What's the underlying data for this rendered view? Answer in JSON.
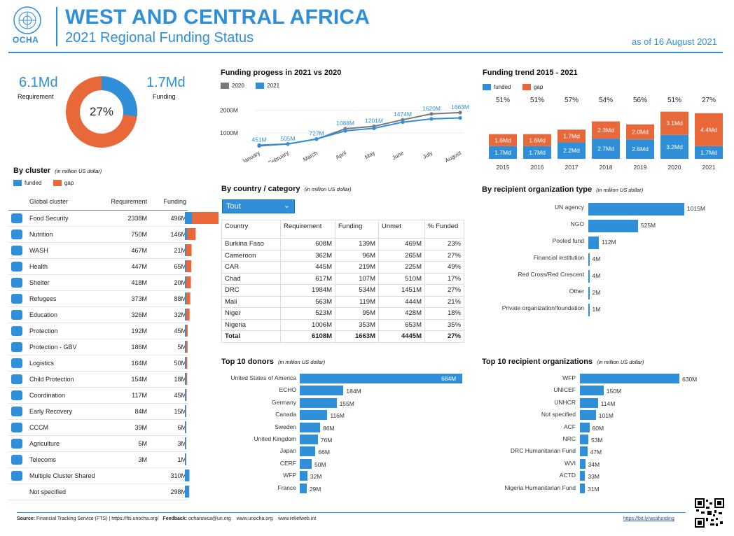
{
  "header": {
    "logo_label": "OCHA",
    "title": "WEST AND CENTRAL AFRICA",
    "subtitle": "2021 Regional Funding Status",
    "date": "as of 16 August 2021"
  },
  "colors": {
    "funded": "#2f8fd8",
    "gap": "#e8683a",
    "line2020": "#7a7a7a",
    "line2021": "#2f8fd8"
  },
  "summary": {
    "requirement_value": "6.1Md",
    "requirement_label": "Requirement",
    "funding_value": "1.7Md",
    "funding_label": "Funding",
    "pct_label": "27%",
    "pct": 27
  },
  "cluster": {
    "title": "By cluster",
    "note": "(in million US dollar)",
    "legend_funded": "funded",
    "legend_gap": "gap",
    "col_cluster": "Global cluster",
    "col_req": "Requirement",
    "col_fund": "Funding",
    "rows": [
      {
        "name": "Food Security",
        "req": "2338M",
        "fund": "496M",
        "req_v": 2338,
        "fund_v": 496,
        "icon": "food-icon"
      },
      {
        "name": "Nutrition",
        "req": "750M",
        "fund": "146M",
        "req_v": 750,
        "fund_v": 146,
        "icon": "nutrition-icon"
      },
      {
        "name": "WASH",
        "req": "467M",
        "fund": "21M",
        "req_v": 467,
        "fund_v": 21,
        "icon": "wash-icon"
      },
      {
        "name": "Health",
        "req": "447M",
        "fund": "65M",
        "req_v": 447,
        "fund_v": 65,
        "icon": "health-icon"
      },
      {
        "name": "Shelter",
        "req": "418M",
        "fund": "20M",
        "req_v": 418,
        "fund_v": 20,
        "icon": "shelter-icon"
      },
      {
        "name": "Refugees",
        "req": "373M",
        "fund": "88M",
        "req_v": 373,
        "fund_v": 88,
        "icon": "refugees-icon"
      },
      {
        "name": "Education",
        "req": "326M",
        "fund": "32M",
        "req_v": 326,
        "fund_v": 32,
        "icon": "education-icon"
      },
      {
        "name": "Protection",
        "req": "192M",
        "fund": "45M",
        "req_v": 192,
        "fund_v": 45,
        "icon": "protection-icon"
      },
      {
        "name": "Protection - GBV",
        "req": "186M",
        "fund": "5M",
        "req_v": 186,
        "fund_v": 5,
        "icon": "gbv-icon"
      },
      {
        "name": "Logistics",
        "req": "164M",
        "fund": "50M",
        "req_v": 164,
        "fund_v": 50,
        "icon": "logistics-icon"
      },
      {
        "name": "Child Protection",
        "req": "154M",
        "fund": "18M",
        "req_v": 154,
        "fund_v": 18,
        "icon": "child-protection-icon"
      },
      {
        "name": "Coordination",
        "req": "117M",
        "fund": "45M",
        "req_v": 117,
        "fund_v": 45,
        "icon": "coordination-icon"
      },
      {
        "name": "Early Recovery",
        "req": "84M",
        "fund": "15M",
        "req_v": 84,
        "fund_v": 15,
        "icon": "early-recovery-icon"
      },
      {
        "name": "CCCM",
        "req": "39M",
        "fund": "6M",
        "req_v": 39,
        "fund_v": 6,
        "icon": "cccm-icon"
      },
      {
        "name": "Agriculture",
        "req": "5M",
        "fund": "3M",
        "req_v": 5,
        "fund_v": 3,
        "icon": "agriculture-icon"
      },
      {
        "name": "Telecoms",
        "req": "3M",
        "fund": "1M",
        "req_v": 3,
        "fund_v": 1,
        "icon": "telecoms-icon"
      },
      {
        "name": "Multiple Cluster Shared",
        "req": "",
        "fund": "310M",
        "req_v": 310,
        "fund_v": 310,
        "icon": "multi-cluster-icon"
      },
      {
        "name": "Not specified",
        "req": "",
        "fund": "298M",
        "req_v": 298,
        "fund_v": 298,
        "icon": ""
      }
    ]
  },
  "progress": {
    "title": "Funding progess in 2021 vs 2020",
    "legend_2020": "2020",
    "legend_2021": "2021"
  },
  "trend": {
    "title": "Funding trend 2015 - 2021",
    "legend_funded": "funded",
    "legend_gap": "gap"
  },
  "country": {
    "title": "By country / category",
    "note": "(in million US dollar)",
    "dropdown": "Tout",
    "headers": [
      "Country",
      "Requirement",
      "Funding",
      "Unmet",
      "% Funded"
    ],
    "rows": [
      [
        "Burkina Faso",
        "608M",
        "139M",
        "469M",
        "23%"
      ],
      [
        "Cameroon",
        "362M",
        "96M",
        "265M",
        "27%"
      ],
      [
        "CAR",
        "445M",
        "219M",
        "225M",
        "49%"
      ],
      [
        "Chad",
        "617M",
        "107M",
        "510M",
        "17%"
      ],
      [
        "DRC",
        "1984M",
        "534M",
        "1451M",
        "27%"
      ],
      [
        "Mali",
        "563M",
        "119M",
        "444M",
        "21%"
      ],
      [
        "Niger",
        "523M",
        "95M",
        "428M",
        "18%"
      ],
      [
        "Nigeria",
        "1006M",
        "353M",
        "653M",
        "35%"
      ]
    ],
    "total": [
      "Total",
      "6108M",
      "1663M",
      "4445M",
      "27%"
    ]
  },
  "donors": {
    "title": "Top 10 donors",
    "note": "(in million US dollar)"
  },
  "recipient_type": {
    "title": "By recipient organization type",
    "note": "(in million US dollar)"
  },
  "recipients": {
    "title": "Top 10 recipient organizations",
    "note": "(in million US dollar)"
  },
  "footer": {
    "source_label": "Source:",
    "source": "Financial Tracking Service (FTS) | https://fts.unocha.org/",
    "feedback_label": "Feedback:",
    "feedback": "ocharowca@un.org",
    "site1": "www.unocha.org",
    "site2": "www.reliefweb.int",
    "link": "https://bit.ly/wcafunding"
  },
  "chart_data": [
    {
      "id": "progress",
      "type": "line",
      "title": "Funding progess in 2021 vs 2020",
      "categories": [
        "January",
        "February",
        "March",
        "April",
        "May",
        "June",
        "July",
        "August"
      ],
      "series": [
        {
          "name": "2020",
          "values": [
            420,
            505,
            720,
            1180,
            1290,
            1580,
            1840,
            1900
          ]
        },
        {
          "name": "2021",
          "values": [
            451,
            505,
            727,
            1088,
            1201,
            1474,
            1620,
            1663
          ]
        }
      ],
      "labels_2021": [
        "451M",
        "505M",
        "727M",
        "1088M",
        "1201M",
        "1474M",
        "1620M",
        "1663M"
      ],
      "yticks": [
        {
          "v": 1000,
          "label": "1000M"
        },
        {
          "v": 2000,
          "label": "2000M"
        }
      ],
      "ylim": [
        0,
        2300
      ]
    },
    {
      "id": "trend",
      "type": "bar",
      "title": "Funding trend 2015 - 2021",
      "stacked": true,
      "categories": [
        "2015",
        "2016",
        "2017",
        "2018",
        "2019",
        "2020",
        "2021"
      ],
      "series": [
        {
          "name": "funded",
          "values": [
            1.7,
            1.7,
            2.2,
            2.7,
            2.6,
            3.2,
            1.7
          ],
          "labels": [
            "1.7Md",
            "1.7Md",
            "2.2Md",
            "2.7Md",
            "2.6Md",
            "3.2Md",
            "1.7Md"
          ]
        },
        {
          "name": "gap",
          "values": [
            1.6,
            1.6,
            1.7,
            2.3,
            2.0,
            3.1,
            4.4
          ],
          "labels": [
            "1.6Md",
            "1.6Md",
            "1.7Md",
            "2.3Md",
            "2.0Md",
            "3.1Md",
            "4.4Md"
          ]
        }
      ],
      "pct_labels": [
        "51%",
        "51%",
        "57%",
        "54%",
        "56%",
        "51%",
        "27%"
      ]
    },
    {
      "id": "recipient_type",
      "type": "bar",
      "orientation": "horizontal",
      "categories": [
        "UN agency",
        "NGO",
        "Pooled fund",
        "Financial institution",
        "Red Cross/Red Crescent",
        "Other",
        "Private organization/foundation"
      ],
      "values": [
        1015,
        525,
        112,
        4,
        4,
        2,
        1
      ],
      "labels": [
        "1015M",
        "525M",
        "112M",
        "4M",
        "4M",
        "2M",
        "1M"
      ]
    },
    {
      "id": "donors",
      "type": "bar",
      "orientation": "horizontal",
      "categories": [
        "United States of America",
        "ECHO",
        "Germany",
        "Canada",
        "Sweden",
        "United Kingdom",
        "Japan",
        "CERF",
        "WFP",
        "France"
      ],
      "values": [
        684,
        184,
        155,
        116,
        86,
        76,
        66,
        50,
        32,
        29
      ],
      "labels": [
        "684M",
        "184M",
        "155M",
        "116M",
        "86M",
        "76M",
        "66M",
        "50M",
        "32M",
        "29M"
      ]
    },
    {
      "id": "recipients",
      "type": "bar",
      "orientation": "horizontal",
      "categories": [
        "WFP",
        "UNICEF",
        "UNHCR",
        "Not specified",
        "ACF",
        "NRC",
        "DRC Humanitarian Fund",
        "WVI",
        "ACTD",
        "Nigeria Humanitarian Fund"
      ],
      "values": [
        630,
        150,
        114,
        101,
        60,
        53,
        47,
        34,
        33,
        31
      ],
      "labels": [
        "630M",
        "150M",
        "114M",
        "101M",
        "60M",
        "53M",
        "47M",
        "34M",
        "33M",
        "31M"
      ]
    }
  ]
}
